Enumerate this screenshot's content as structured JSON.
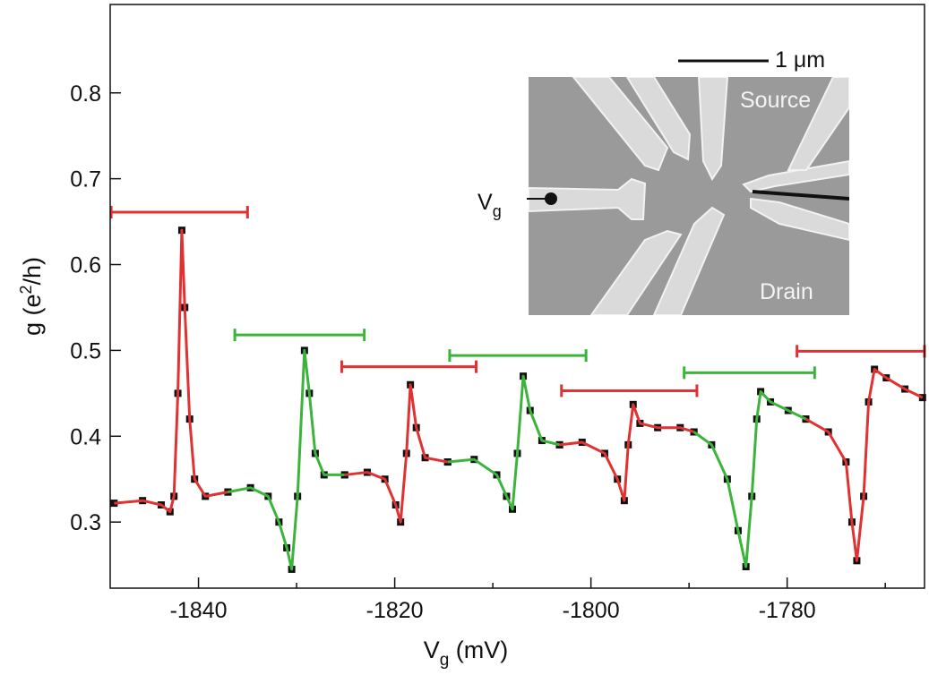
{
  "chart_data": {
    "type": "line",
    "xlabel": [
      "V",
      "g",
      " (mV)"
    ],
    "ylabel": [
      "g (e",
      "2",
      "/h)"
    ],
    "xlim": [
      -1849,
      -1766
    ],
    "ylim": [
      0.223,
      0.903
    ],
    "xticks": [
      -1840,
      -1820,
      -1800,
      -1780
    ],
    "xminor_ticks": [
      -1830,
      -1810,
      -1790,
      -1770
    ],
    "yticks": [
      0.3,
      0.4,
      0.5,
      0.6,
      0.7,
      0.8
    ],
    "marker_color": "#111111",
    "series": [
      {
        "color": "#e03232",
        "x": [
          -1848.6,
          -1845.7,
          -1843.8,
          -1842.9,
          -1842.5,
          -1842.1,
          -1841.7,
          -1841.4,
          -1840.9,
          -1840.4,
          -1839.3,
          -1837
        ],
        "values": [
          0.322,
          0.325,
          0.32,
          0.312,
          0.33,
          0.45,
          0.64,
          0.55,
          0.42,
          0.35,
          0.33,
          0.335
        ]
      },
      {
        "color": "#3cb43c",
        "x": [
          -1837,
          -1834.7,
          -1832.9,
          -1831.8,
          -1831,
          -1830.5,
          -1829.9,
          -1829.2,
          -1828.7,
          -1828.1,
          -1827.2,
          -1825.1
        ],
        "values": [
          0.335,
          0.34,
          0.33,
          0.3,
          0.27,
          0.245,
          0.33,
          0.5,
          0.45,
          0.38,
          0.355,
          0.355
        ]
      },
      {
        "color": "#e03232",
        "x": [
          -1825.1,
          -1822.8,
          -1821,
          -1819.9,
          -1819.4,
          -1818.8,
          -1818.4,
          -1817.8,
          -1816.9,
          -1814.6
        ],
        "values": [
          0.355,
          0.358,
          0.35,
          0.32,
          0.3,
          0.38,
          0.46,
          0.41,
          0.375,
          0.37
        ]
      },
      {
        "color": "#3cb43c",
        "x": [
          -1814.6,
          -1811.9,
          -1809.6,
          -1808.6,
          -1808,
          -1807.5,
          -1806.9,
          -1806.2,
          -1805,
          -1803.2
        ],
        "values": [
          0.37,
          0.373,
          0.355,
          0.33,
          0.315,
          0.38,
          0.47,
          0.43,
          0.395,
          0.39
        ]
      },
      {
        "color": "#e03232",
        "x": [
          -1803.2,
          -1800.9,
          -1798.6,
          -1797.3,
          -1796.6,
          -1796.2,
          -1795.7,
          -1795,
          -1793.2,
          -1790.9,
          -1789.5
        ],
        "values": [
          0.39,
          0.393,
          0.38,
          0.35,
          0.325,
          0.39,
          0.437,
          0.415,
          0.41,
          0.41,
          0.405
        ]
      },
      {
        "color": "#3cb43c",
        "x": [
          -1789.5,
          -1787.7,
          -1786.1,
          -1785,
          -1784.2,
          -1783.6,
          -1783.1,
          -1782.7,
          -1781.7,
          -1779.9,
          -1778.1
        ],
        "values": [
          0.405,
          0.39,
          0.35,
          0.29,
          0.248,
          0.33,
          0.42,
          0.452,
          0.44,
          0.43,
          0.42
        ]
      },
      {
        "color": "#e03232",
        "x": [
          -1778.1,
          -1775.8,
          -1774,
          -1773.4,
          -1772.9,
          -1772.2,
          -1771.7,
          -1771.1,
          -1769.9,
          -1768,
          -1766.2
        ],
        "values": [
          0.42,
          0.405,
          0.37,
          0.3,
          0.255,
          0.33,
          0.44,
          0.478,
          0.468,
          0.455,
          0.445
        ]
      }
    ],
    "ranges": [
      {
        "color": "#e03232",
        "x": [
          -1848.9,
          -1835
        ],
        "y": 0.661
      },
      {
        "color": "#3cb43c",
        "x": [
          -1836.3,
          -1823.1
        ],
        "y": 0.518
      },
      {
        "color": "#e03232",
        "x": [
          -1825.4,
          -1811.7
        ],
        "y": 0.481
      },
      {
        "color": "#3cb43c",
        "x": [
          -1814.4,
          -1800.5
        ],
        "y": 0.494
      },
      {
        "color": "#e03232",
        "x": [
          -1803,
          -1789.2
        ],
        "y": 0.453
      },
      {
        "color": "#3cb43c",
        "x": [
          -1790.5,
          -1777.2
        ],
        "y": 0.474
      },
      {
        "color": "#e03232",
        "x": [
          -1779,
          -1766
        ],
        "y": 0.499
      }
    ]
  },
  "inset": {
    "scale": "1 μm",
    "source": "Source",
    "drain": "Drain",
    "gate": [
      "V",
      "g"
    ]
  }
}
